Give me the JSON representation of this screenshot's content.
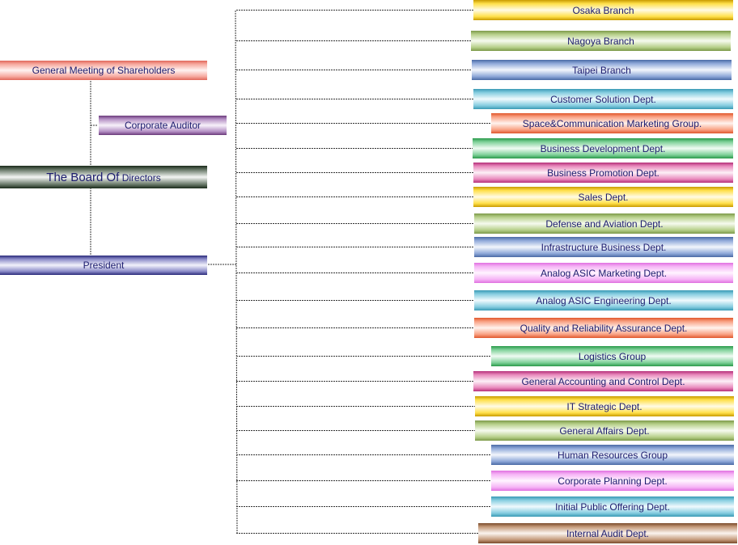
{
  "diagram": {
    "top_level": {
      "shareholders": "General Meeting of Shareholders",
      "auditor": "Corporate Auditor",
      "board_big": "The Board Of",
      "board_small": "Directors",
      "president": "President"
    },
    "departments": [
      {
        "label": "Osaka Branch",
        "color": "#ffe04a",
        "style": "yellow"
      },
      {
        "label": "Nagoya Branch",
        "color": "#b7d08a",
        "style": "green"
      },
      {
        "label": "Taipei Branch",
        "color": "#8fa9d9",
        "style": "blue"
      },
      {
        "label": "Customer Solution Dept.",
        "color": "#86cde0",
        "style": "cyan"
      },
      {
        "label": "Space&Communication Marketing Group.",
        "color": "#f9a183",
        "style": "orange"
      },
      {
        "label": "Business Development Dept.",
        "color": "#7fd199",
        "style": "dgreen"
      },
      {
        "label": "Business Promotion Dept.",
        "color": "#e98abd",
        "style": "magenta"
      },
      {
        "label": "Sales Dept.",
        "color": "#ffe04a",
        "style": "yellow"
      },
      {
        "label": "Defense and Aviation Dept.",
        "color": "#b7d08a",
        "style": "green"
      },
      {
        "label": "Infrastructure Business Dept.",
        "color": "#8fa9d9",
        "style": "blue"
      },
      {
        "label": "Analog ASIC Marketing Dept.",
        "color": "#f6b4f6",
        "style": "pink"
      },
      {
        "label": "Analog ASIC Engineering Dept.",
        "color": "#86cde0",
        "style": "cyan"
      },
      {
        "label": "Quality and Reliability Assurance Dept.",
        "color": "#f9a183",
        "style": "orange"
      },
      {
        "label": "Logistics Group",
        "color": "#7fd199",
        "style": "dgreen"
      },
      {
        "label": "General Accounting and Control Dept.",
        "color": "#e98abd",
        "style": "magenta"
      },
      {
        "label": "IT Strategic Dept.",
        "color": "#ffe04a",
        "style": "yellow"
      },
      {
        "label": "General Affairs Dept.",
        "color": "#b7d08a",
        "style": "green"
      },
      {
        "label": "Human Resources Group",
        "color": "#8fa9d9",
        "style": "blue"
      },
      {
        "label": "Corporate Planning Dept.",
        "color": "#f6b4f6",
        "style": "pink"
      },
      {
        "label": "Initial Public Offering Dept.",
        "color": "#86cde0",
        "style": "cyan"
      },
      {
        "label": "Internal Audit Dept.",
        "color": "#c49a7a",
        "style": "brown"
      }
    ]
  }
}
